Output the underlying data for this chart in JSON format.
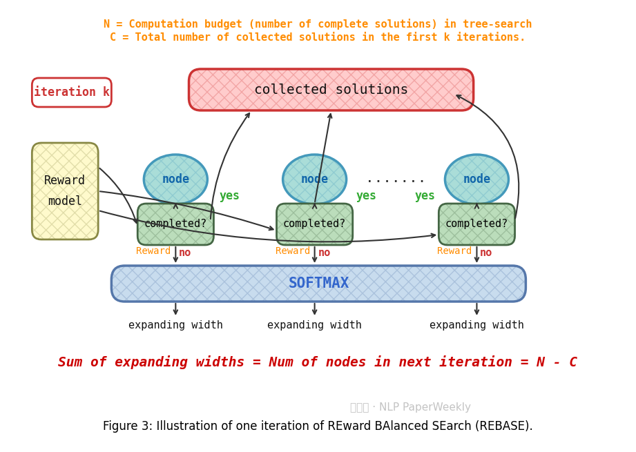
{
  "title_line1": "N = Computation budget (number of complete solutions) in tree-search",
  "title_line2": "C = Total number of collected solutions in the first k iterations.",
  "title_color": "#FF8C00",
  "bottom_line": "Sum of expanding widths = Num of nodes in next iteration = N - C",
  "bottom_color": "#CC0000",
  "caption": "Figure 3: Illustration of one iteration of REward BAlanced SEarch (REBASE).",
  "caption_color": "#000000",
  "bg_color": "#ffffff",
  "collected_box_fill": "#FFCCCC",
  "collected_box_edge": "#CC3333",
  "collected_text": "collected solutions",
  "node_fill": "#AADDD8",
  "node_edge": "#4499BB",
  "completed_fill": "#BBDDBB",
  "completed_edge": "#446644",
  "softmax_fill": "#C8DCEE",
  "softmax_edge": "#5577AA",
  "reward_box_fill": "#FFFACC",
  "reward_box_edge": "#888844",
  "iter_box_fill": "#ffffff",
  "iter_box_edge": "#CC3333",
  "iter_text": "iteration k",
  "iter_text_color": "#CC3333",
  "reward_text": "Reward\nmodel",
  "node_text": "node",
  "completed_text": "completed?",
  "softmax_text": "SOFTMAX",
  "yes_color": "#33AA33",
  "no_color": "#CC3333",
  "reward_arrow_color": "#FF8C00",
  "arrow_color": "#333333",
  "expanding_text": "expanding width",
  "dots_text": ".......",
  "node_text_color": "#1166AA",
  "completed_text_color": "#000000",
  "softmax_text_color": "#3366CC",
  "watermark": "公众号 · NLP PaperWeekly"
}
